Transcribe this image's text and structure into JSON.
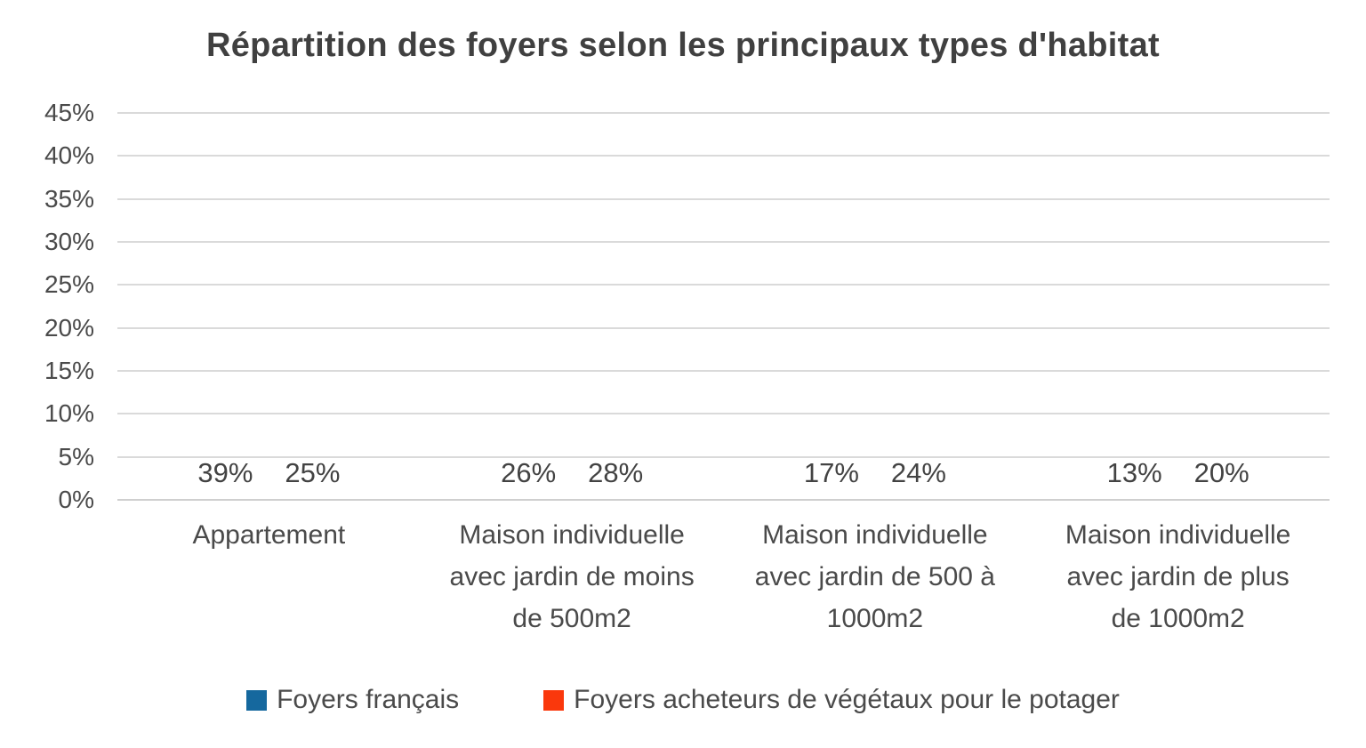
{
  "chart_data": {
    "type": "bar",
    "title": "Répartition des foyers selon les principaux types d'habitat",
    "categories": [
      {
        "label": "Appartement",
        "lines": [
          "Appartement"
        ]
      },
      {
        "label": "Maison individuelle avec jardin de moins de 500m2",
        "lines": [
          "Maison individuelle",
          "avec jardin de moins",
          "de 500m2"
        ]
      },
      {
        "label": "Maison individuelle avec jardin de 500 à 1000m2",
        "lines": [
          "Maison individuelle",
          "avec jardin de 500 à",
          "1000m2"
        ]
      },
      {
        "label": "Maison individuelle avec jardin de plus de 1000m2",
        "lines": [
          "Maison individuelle",
          "avec jardin de plus",
          "de 1000m2"
        ]
      }
    ],
    "series": [
      {
        "name": "Foyers français",
        "color": "#15689E",
        "values": [
          39,
          26,
          17,
          13
        ],
        "data_labels": [
          "39%",
          "26%",
          "17%",
          "13%"
        ],
        "rendered_heights": [
          39.1,
          25.9,
          17.2,
          13.1
        ]
      },
      {
        "name": "Foyers acheteurs de végétaux pour le potager",
        "color": "#FA380C",
        "values": [
          25,
          28,
          24,
          20
        ],
        "data_labels": [
          "25%",
          "28%",
          "24%",
          "20%"
        ],
        "rendered_heights": [
          24.6,
          27.9,
          23.8,
          19.6
        ]
      }
    ],
    "y_axis": {
      "min": 0,
      "max": 45,
      "step": 5,
      "tick_labels": [
        "0%",
        "5%",
        "10%",
        "15%",
        "20%",
        "25%",
        "30%",
        "35%",
        "40%",
        "45%"
      ]
    },
    "xlabel": "",
    "ylabel": "",
    "ylim": [
      0,
      45
    ],
    "grid": true,
    "legend_position": "bottom",
    "colors": {
      "background": "#FFFFFF",
      "gridline": "#DADADA",
      "axis_text": "#4A4A4A",
      "title_text": "#404040"
    }
  }
}
